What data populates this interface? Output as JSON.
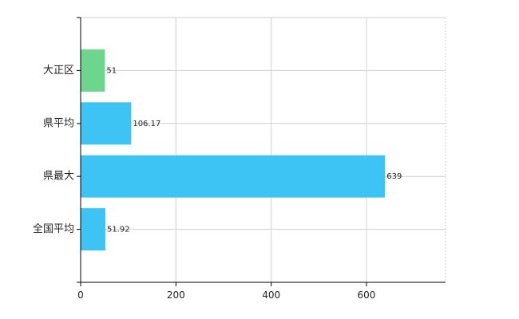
{
  "chart_data": {
    "type": "bar",
    "orientation": "horizontal",
    "categories": [
      "大正区",
      "県平均",
      "県最大",
      "全国平均"
    ],
    "values": [
      51,
      106.17,
      639,
      51.92
    ],
    "data_labels": [
      "51",
      "106.17",
      "639",
      "51.92"
    ],
    "bar_colors": [
      "#6dd58c",
      "#3ec3f5",
      "#3ec3f5",
      "#3ec3f5"
    ],
    "title": "",
    "xlabel": "",
    "ylabel": "",
    "xlim": [
      0,
      766
    ],
    "x_ticks": [
      0,
      200,
      400,
      600
    ],
    "grid": true,
    "legend": "none"
  }
}
